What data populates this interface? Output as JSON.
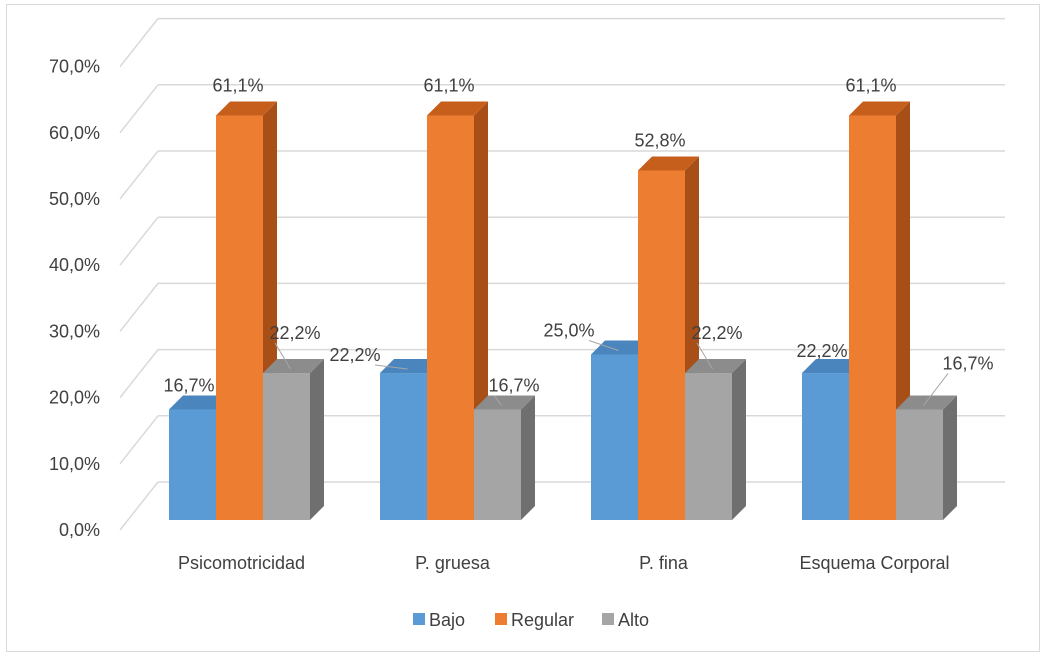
{
  "chart_data": {
    "type": "bar",
    "categories": [
      "Psicomotricidad",
      "P. gruesa",
      "P. fina",
      "Esquema Corporal"
    ],
    "series": [
      {
        "name": "Bajo",
        "values": [
          16.7,
          22.2,
          25.0,
          22.2
        ],
        "labels": [
          "16,7%",
          "22,2%",
          "25,0%",
          "22,2%"
        ]
      },
      {
        "name": "Regular",
        "values": [
          61.1,
          61.1,
          52.8,
          61.1
        ],
        "labels": [
          "61,1%",
          "61,1%",
          "52,8%",
          "61,1%"
        ]
      },
      {
        "name": "Alto",
        "values": [
          22.2,
          16.7,
          22.2,
          16.7
        ],
        "labels": [
          "22,2%",
          "16,7%",
          "22,2%",
          "16,7%"
        ]
      }
    ],
    "y_ticks": [
      "0,0%",
      "10,0%",
      "20,0%",
      "30,0%",
      "40,0%",
      "50,0%",
      "60,0%",
      "70,0%"
    ],
    "ylim": [
      0,
      70
    ],
    "grid": true,
    "three_d": true,
    "legend_position": "bottom",
    "colors": {
      "Bajo": {
        "front": "#5b9bd5",
        "top": "#4a86bd",
        "side": "#2e6da4"
      },
      "Regular": {
        "front": "#ed7d31",
        "top": "#c65f1c",
        "side": "#a84f17"
      },
      "Alto": {
        "front": "#a5a5a5",
        "top": "#8c8c8c",
        "side": "#6f6f6f"
      }
    },
    "gridline_color": "#d9d9d9"
  }
}
